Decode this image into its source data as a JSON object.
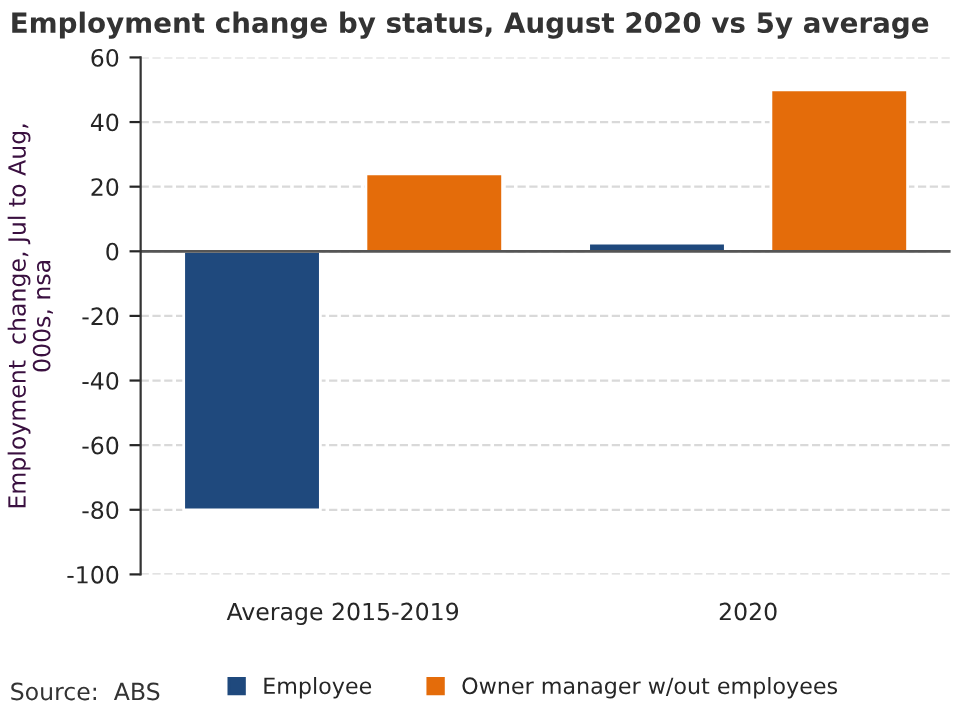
{
  "chart_data": {
    "type": "bar",
    "title": "Employment change by status, August 2020 vs 5y average",
    "ylabel": "Employment  change, Jul to Aug,\n000s, nsa",
    "categories": [
      "Average 2015-2019",
      "2020"
    ],
    "series": [
      {
        "name": "Employee",
        "color": "#1f497d",
        "values": [
          -80,
          2.5
        ]
      },
      {
        "name": "Owner manager w/out employees",
        "color": "#e46c0a",
        "values": [
          24,
          50
        ]
      }
    ],
    "ylim": [
      -100,
      60
    ],
    "yticks": [
      {
        "value": -100,
        "label": "-100"
      },
      {
        "value": -80,
        "label": "-80"
      },
      {
        "value": -60,
        "label": "-60"
      },
      {
        "value": -40,
        "label": "-40"
      },
      {
        "value": -20,
        "label": "-20"
      },
      0,
      20,
      40,
      60
    ],
    "grid": "y",
    "legend": "bottom",
    "annotations": [
      "Source:  ABS"
    ]
  }
}
